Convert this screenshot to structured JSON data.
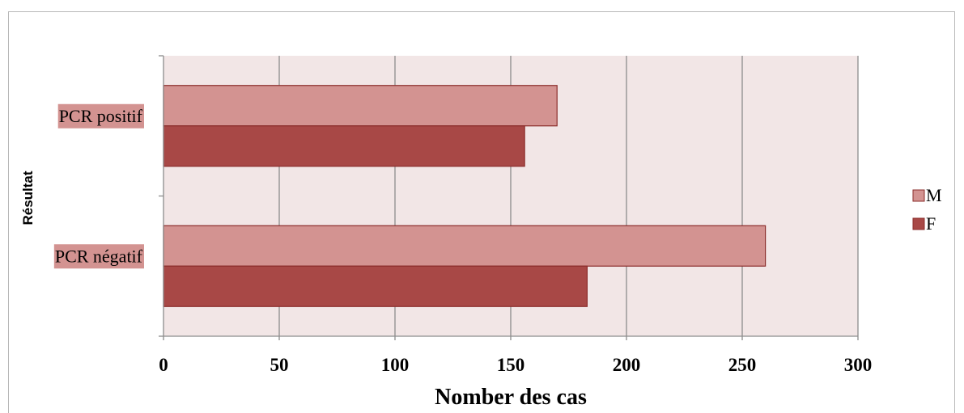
{
  "chart_data": {
    "type": "bar",
    "orientation": "horizontal",
    "categories": [
      "PCR négatif",
      "PCR positif"
    ],
    "series": [
      {
        "name": "F",
        "values": [
          183,
          156
        ],
        "color": "#a84846"
      },
      {
        "name": "M",
        "values": [
          260,
          170
        ],
        "color": "#d39391"
      }
    ],
    "xlabel": "Nomber des cas",
    "ylabel": "Résultat",
    "xlim": [
      0,
      300
    ],
    "xticks": [
      0,
      50,
      100,
      150,
      200,
      250,
      300
    ],
    "grid": true,
    "legend_position": "right",
    "plot_background": "#f2e6e6",
    "category_label_background": "#d39391"
  }
}
